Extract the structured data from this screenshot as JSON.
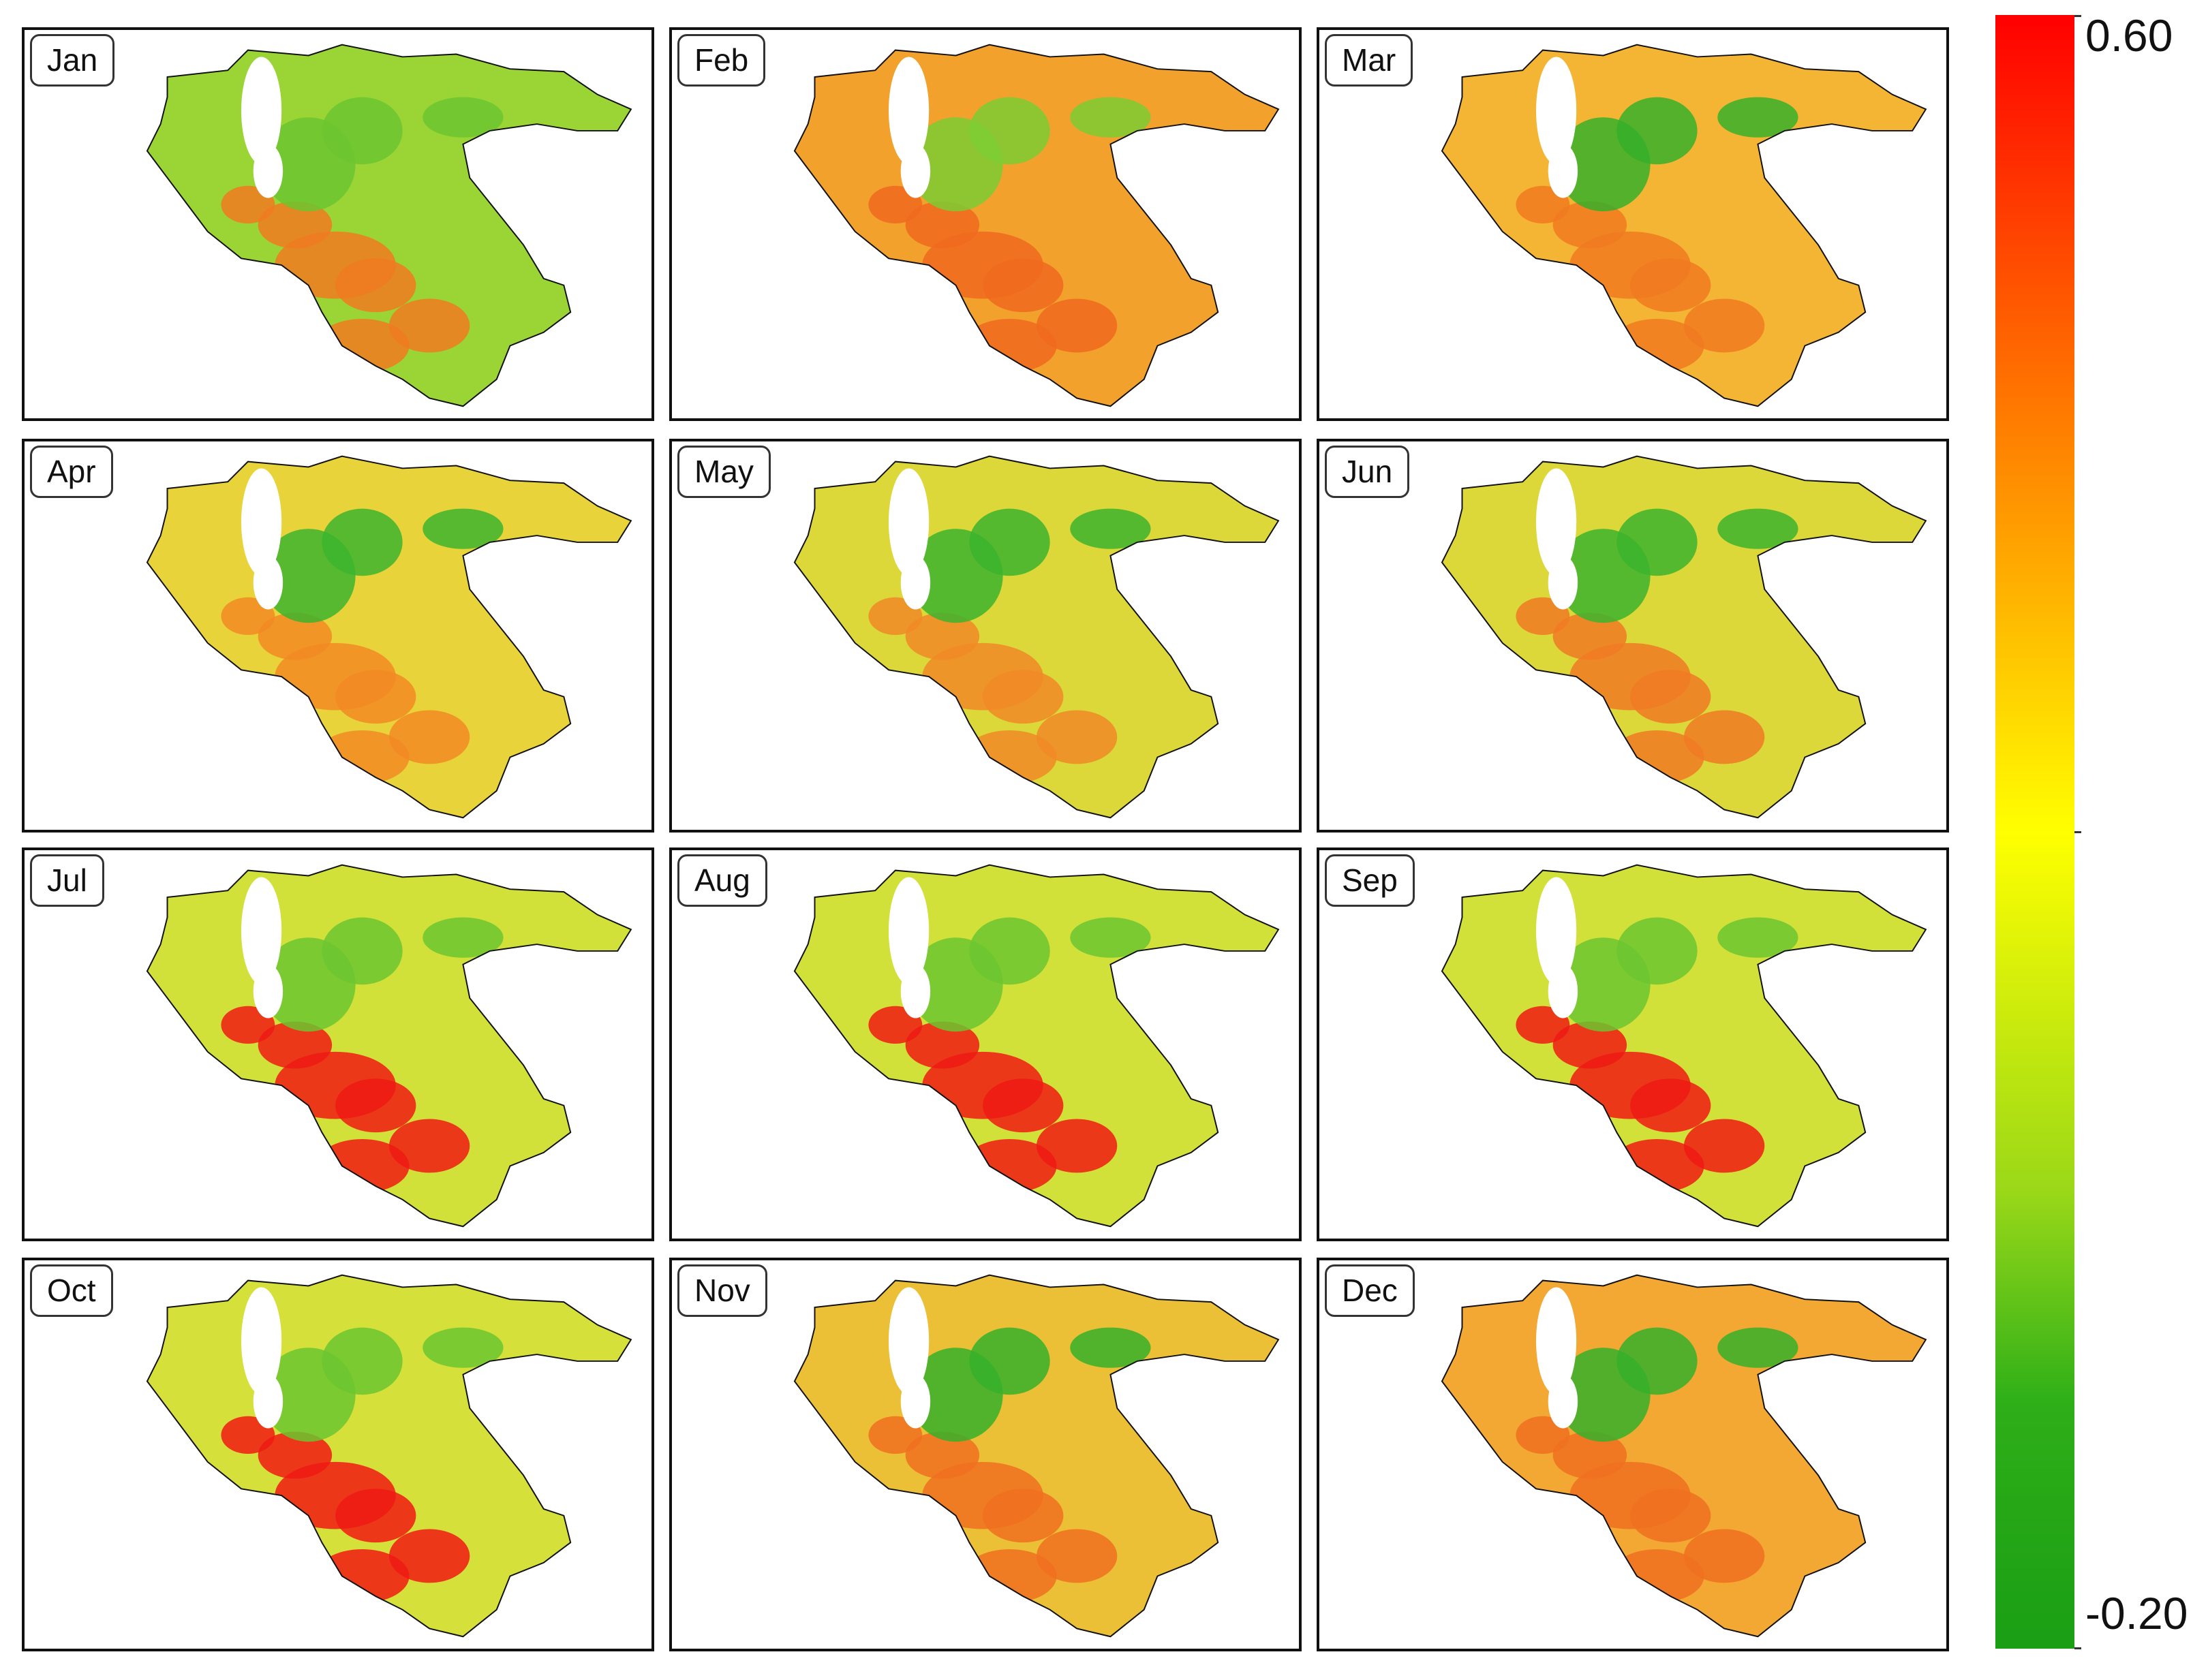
{
  "months": [
    "Jan",
    "Feb",
    "Mar",
    "Apr",
    "May",
    "Jun",
    "Jul",
    "Aug",
    "Sep",
    "Oct",
    "Nov",
    "Dec"
  ],
  "colorbar": {
    "max_label": "0.60",
    "min_label": "-0.20",
    "colors": [
      "#ff0000",
      "#ff8c00",
      "#ffff00",
      "#9ad818",
      "#1a9e14"
    ]
  },
  "panel_themes": {
    "Jan": {
      "base": "#9bd435",
      "hot": "#f07a20",
      "cool": "#6cc630"
    },
    "Feb": {
      "base": "#f2a12c",
      "hot": "#f06a1e",
      "cool": "#7ccc34"
    },
    "Mar": {
      "base": "#f5b534",
      "hot": "#f07a20",
      "cool": "#36b02a"
    },
    "Apr": {
      "base": "#e8d43a",
      "hot": "#f28a24",
      "cool": "#3cb42e"
    },
    "May": {
      "base": "#dcd83a",
      "hot": "#f08a26",
      "cool": "#3cb42e"
    },
    "Jun": {
      "base": "#dcd83a",
      "hot": "#f07a24",
      "cool": "#3cb42e"
    },
    "Jul": {
      "base": "#d2e03a",
      "hot": "#f01a14",
      "cool": "#6cc630"
    },
    "Aug": {
      "base": "#d2e03a",
      "hot": "#f01a14",
      "cool": "#6cc630"
    },
    "Sep": {
      "base": "#d2e03a",
      "hot": "#f01a14",
      "cool": "#6cc630"
    },
    "Oct": {
      "base": "#d6e03a",
      "hot": "#f01a14",
      "cool": "#6cc630"
    },
    "Nov": {
      "base": "#ecc036",
      "hot": "#f07020",
      "cool": "#36b02a"
    },
    "Dec": {
      "base": "#f2a832",
      "hot": "#f07020",
      "cool": "#36b02a"
    }
  }
}
